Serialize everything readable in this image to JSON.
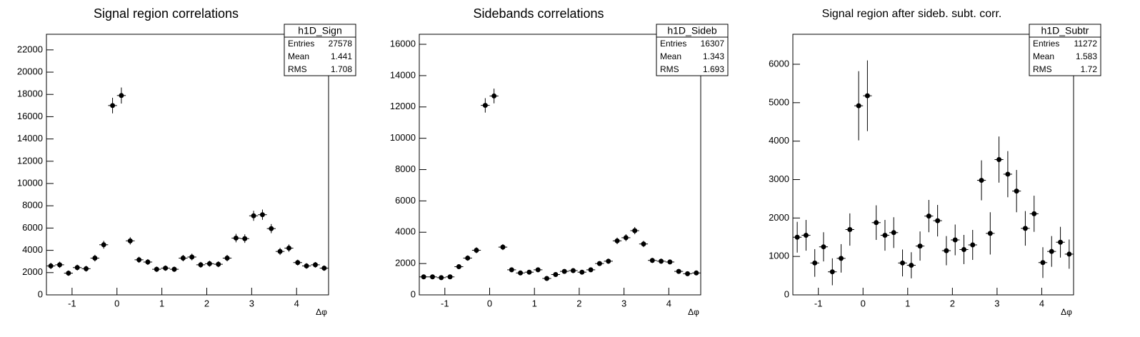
{
  "chart_data": [
    {
      "type": "errorbar",
      "title": "Signal region correlations",
      "x_label": "Δφ",
      "x": [
        -1.473,
        -1.276,
        -1.08,
        -0.884,
        -0.687,
        -0.491,
        -0.295,
        -0.098,
        0.098,
        0.295,
        0.491,
        0.687,
        0.884,
        1.08,
        1.276,
        1.473,
        1.669,
        1.865,
        2.062,
        2.258,
        2.454,
        2.651,
        2.847,
        3.043,
        3.24,
        3.436,
        3.632,
        3.829,
        4.025,
        4.221,
        4.418,
        4.614
      ],
      "values": [
        2600,
        2700,
        1950,
        2450,
        2350,
        3300,
        4500,
        17000,
        17900,
        4850,
        3150,
        2950,
        2300,
        2400,
        2300,
        3300,
        3400,
        2700,
        2800,
        2750,
        3300,
        5100,
        5050,
        7100,
        7200,
        5950,
        3900,
        4200,
        2900,
        2600,
        2700,
        2400
      ],
      "errors": [
        280,
        280,
        240,
        260,
        260,
        300,
        350,
        700,
        720,
        330,
        270,
        260,
        240,
        240,
        240,
        290,
        300,
        260,
        270,
        260,
        290,
        380,
        380,
        450,
        460,
        410,
        320,
        330,
        260,
        250,
        250,
        240
      ],
      "color": "#000000",
      "xlim": [
        -1.5708,
        4.7124
      ],
      "xticks": [
        -1,
        0,
        1,
        2,
        3,
        4
      ],
      "ylim": [
        0,
        23400
      ],
      "yticks": [
        0,
        2000,
        4000,
        6000,
        8000,
        10000,
        12000,
        14000,
        16000,
        18000,
        20000,
        22000
      ],
      "stats": {
        "name": "h1D_Sign",
        "rows": [
          [
            "Entries",
            27578
          ],
          [
            "Mean",
            1.441
          ],
          [
            "RMS",
            1.708
          ]
        ]
      }
    },
    {
      "type": "errorbar",
      "title": "Sidebands correlations",
      "x_label": "Δφ",
      "x": [
        -1.473,
        -1.276,
        -1.08,
        -0.884,
        -0.687,
        -0.491,
        -0.295,
        -0.098,
        0.098,
        0.295,
        0.491,
        0.687,
        0.884,
        1.08,
        1.276,
        1.473,
        1.669,
        1.865,
        2.062,
        2.258,
        2.454,
        2.651,
        2.847,
        3.043,
        3.24,
        3.436,
        3.632,
        3.829,
        4.025,
        4.221,
        4.418,
        4.614
      ],
      "values": [
        1150,
        1150,
        1100,
        1150,
        1800,
        2350,
        2850,
        12100,
        12700,
        3050,
        1600,
        1400,
        1450,
        1600,
        1050,
        1300,
        1500,
        1550,
        1450,
        1600,
        2000,
        2150,
        3450,
        3650,
        4100,
        3250,
        2200,
        2150,
        2100,
        1500,
        1350,
        1400
      ],
      "errors": [
        110,
        110,
        110,
        110,
        140,
        170,
        190,
        460,
        470,
        190,
        130,
        120,
        120,
        130,
        110,
        120,
        130,
        130,
        120,
        130,
        150,
        160,
        210,
        220,
        230,
        200,
        160,
        160,
        150,
        130,
        120,
        120
      ],
      "color": "#000000",
      "xlim": [
        -1.5708,
        4.7124
      ],
      "xticks": [
        -1,
        0,
        1,
        2,
        3,
        4
      ],
      "ylim": [
        0,
        16640
      ],
      "yticks": [
        0,
        2000,
        4000,
        6000,
        8000,
        10000,
        12000,
        14000,
        16000
      ],
      "stats": {
        "name": "h1D_Sideb",
        "rows": [
          [
            "Entries",
            16307
          ],
          [
            "Mean",
            1.343
          ],
          [
            "RMS",
            1.693
          ]
        ]
      }
    },
    {
      "type": "errorbar",
      "title": "Signal region after sideb. subt. corr.",
      "x_label": "Δφ",
      "x": [
        -1.473,
        -1.276,
        -1.08,
        -0.884,
        -0.687,
        -0.491,
        -0.295,
        -0.098,
        0.098,
        0.295,
        0.491,
        0.687,
        0.884,
        1.08,
        1.276,
        1.473,
        1.669,
        1.865,
        2.062,
        2.258,
        2.454,
        2.651,
        2.847,
        3.043,
        3.24,
        3.436,
        3.632,
        3.829,
        4.025,
        4.221,
        4.418,
        4.614
      ],
      "values": [
        1500,
        1550,
        830,
        1250,
        600,
        950,
        1700,
        4920,
        5180,
        1880,
        1550,
        1620,
        830,
        770,
        1270,
        2050,
        1930,
        1150,
        1430,
        1180,
        1300,
        2980,
        1600,
        3520,
        3140,
        2700,
        1730,
        2110,
        840,
        1130,
        1370,
        1060
      ],
      "errors": [
        400,
        400,
        360,
        380,
        350,
        370,
        420,
        900,
        920,
        450,
        400,
        400,
        350,
        340,
        380,
        420,
        410,
        380,
        400,
        380,
        390,
        520,
        550,
        600,
        600,
        550,
        450,
        470,
        400,
        400,
        400,
        380
      ],
      "color": "#000000",
      "xlim": [
        -1.5708,
        4.7124
      ],
      "xticks": [
        -1,
        0,
        1,
        2,
        3,
        4
      ],
      "ylim": [
        0,
        6780
      ],
      "yticks": [
        0,
        1000,
        2000,
        3000,
        4000,
        5000,
        6000
      ],
      "stats": {
        "name": "h1D_Subtr",
        "rows": [
          [
            "Entries",
            11272
          ],
          [
            "Mean",
            1.583
          ],
          [
            "RMS",
            1.72
          ]
        ]
      }
    }
  ]
}
